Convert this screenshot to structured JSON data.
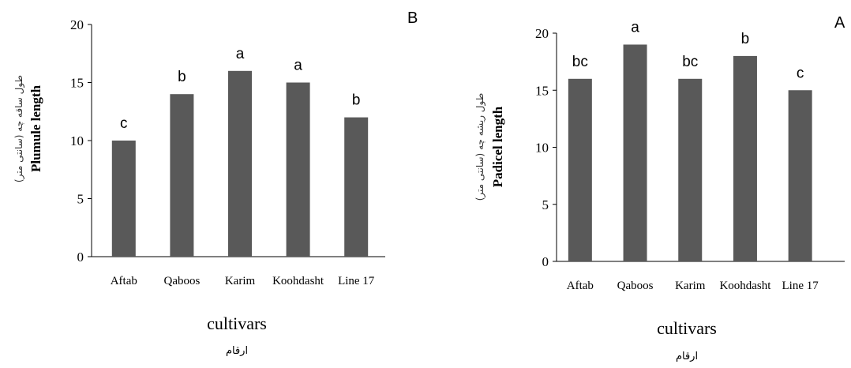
{
  "chart_data": [
    {
      "type": "bar",
      "panel_label": "B",
      "categories": [
        "Aftab",
        "Qaboos",
        "Karim",
        "Koohdasht",
        "Line 17"
      ],
      "values": [
        10,
        14,
        16,
        15,
        12
      ],
      "significance_letters": [
        "c",
        "b",
        "a",
        "a",
        "b"
      ],
      "ylabel": "Plumule length",
      "ylabel_fa": "طول ساقه چه (سانتی متر)",
      "xlabel": "cultivars",
      "xlabel_fa": "ارقام",
      "ylim": [
        0,
        20
      ],
      "yticks": [
        0,
        5,
        10,
        15,
        20
      ],
      "grid": false,
      "bar_color": "#595959"
    },
    {
      "type": "bar",
      "panel_label": "A",
      "categories": [
        "Aftab",
        "Qaboos",
        "Karim",
        "Koohdasht",
        "Line 17"
      ],
      "values": [
        16,
        19,
        16,
        18,
        15
      ],
      "significance_letters": [
        "bc",
        "a",
        "bc",
        "b",
        "c"
      ],
      "ylabel": "Padicel length",
      "ylabel_fa": "طول ریشه چه (سانتی متر)",
      "xlabel": "cultivars",
      "xlabel_fa": "ارقام",
      "ylim": [
        0,
        20
      ],
      "yticks": [
        0,
        5,
        10,
        15,
        20
      ],
      "grid": false,
      "bar_color": "#595959"
    }
  ]
}
